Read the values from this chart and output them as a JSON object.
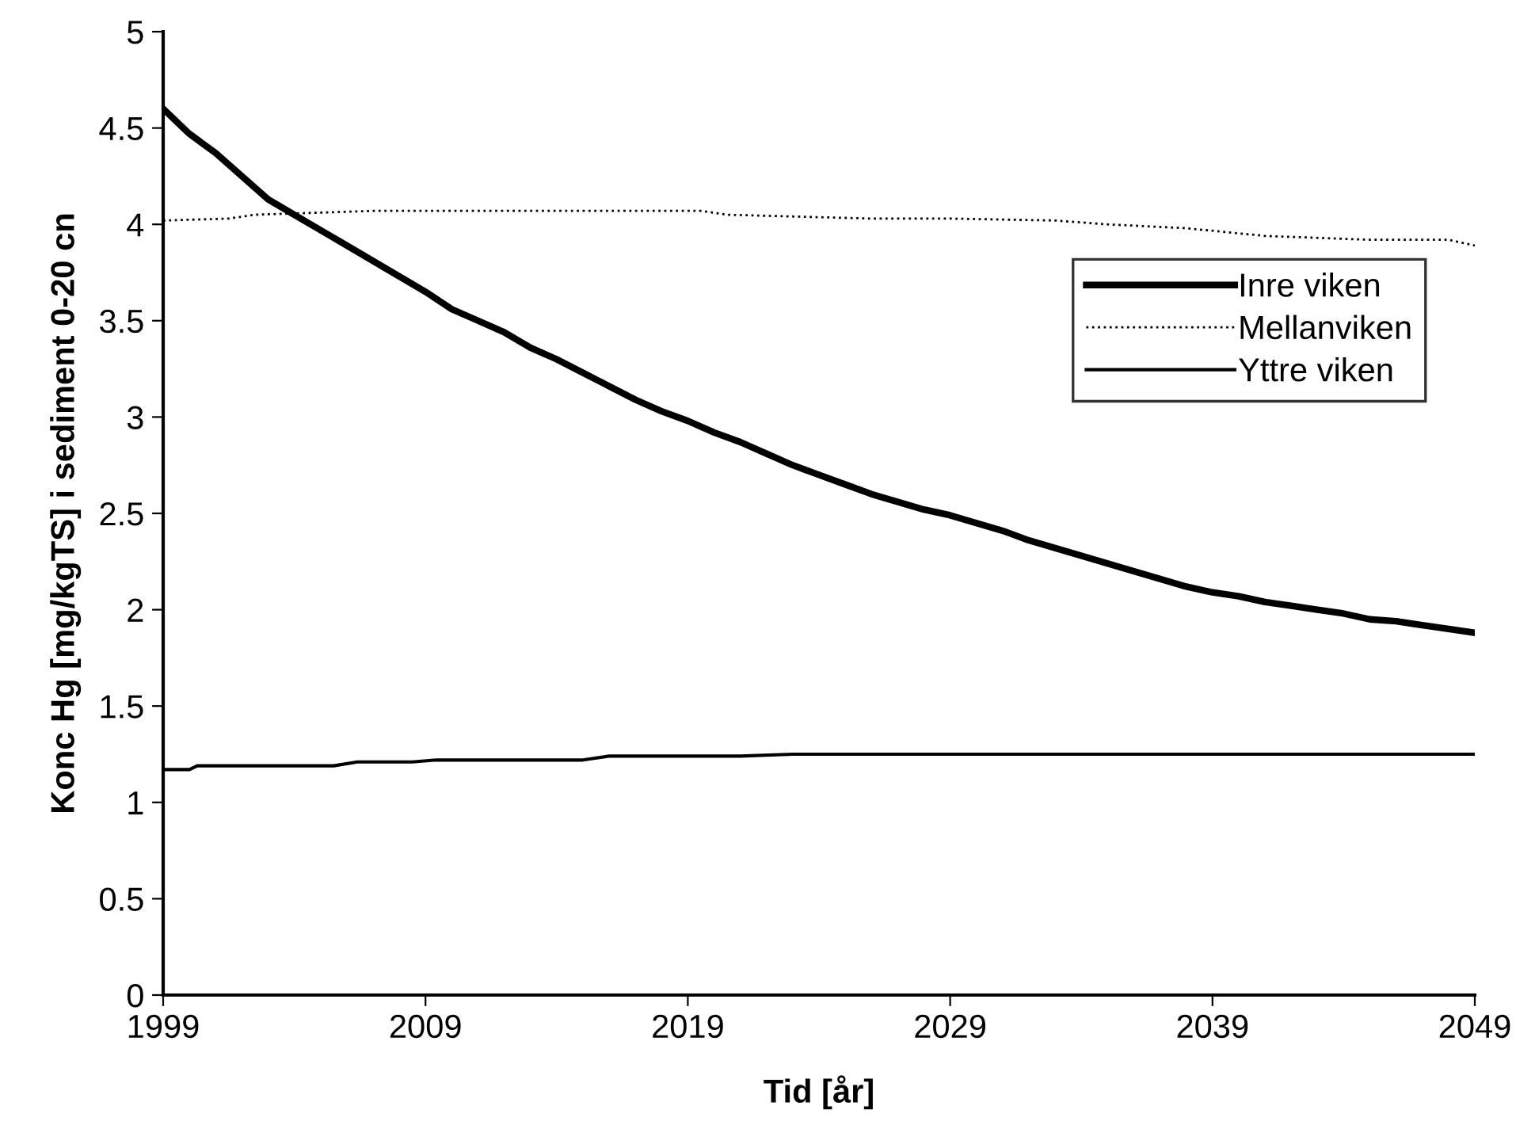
{
  "chart_data": {
    "type": "line",
    "xlabel": "Tid [år]",
    "ylabel": "Konc Hg [mg/kgTS] i sediment 0-20 cn",
    "xlim": [
      1999,
      2049
    ],
    "xticks": [
      1999,
      2009,
      2019,
      2029,
      2039,
      2049
    ],
    "ylim": [
      0,
      5
    ],
    "yticks": [
      0,
      0.5,
      1,
      1.5,
      2,
      2.5,
      3,
      3.5,
      4,
      4.5,
      5
    ],
    "grid": false,
    "legend": "right",
    "marker": "none",
    "series": [
      {
        "name": "Inre viken",
        "color": "#000000",
        "line_style": "solid",
        "x": [
          1999,
          2000,
          2001,
          2002,
          2003,
          2004,
          2005,
          2006,
          2007,
          2008,
          2009,
          2010,
          2011,
          2012,
          2013,
          2014,
          2015,
          2016,
          2017,
          2018,
          2019,
          2020,
          2021,
          2022,
          2023,
          2024,
          2025,
          2026,
          2027,
          2028,
          2029,
          2030,
          2031,
          2032,
          2033,
          2034,
          2035,
          2036,
          2037,
          2038,
          2039,
          2040,
          2041,
          2042,
          2043,
          2044,
          2045,
          2046,
          2047,
          2048,
          2049
        ],
        "values": [
          4.6,
          4.47,
          4.37,
          4.25,
          4.13,
          4.05,
          3.97,
          3.89,
          3.81,
          3.73,
          3.65,
          3.56,
          3.5,
          3.44,
          3.36,
          3.3,
          3.23,
          3.16,
          3.09,
          3.03,
          2.98,
          2.92,
          2.87,
          2.81,
          2.75,
          2.7,
          2.65,
          2.6,
          2.56,
          2.52,
          2.49,
          2.45,
          2.41,
          2.36,
          2.32,
          2.28,
          2.24,
          2.2,
          2.16,
          2.12,
          2.09,
          2.07,
          2.04,
          2.02,
          2.0,
          1.98,
          1.95,
          1.94,
          1.92,
          1.9,
          1.88
        ]
      },
      {
        "name": "Mellanviken",
        "color": "#000000",
        "line_style": "dotted",
        "x": [
          1999,
          2001.5,
          2002.5,
          2007,
          2019.5,
          2020.5,
          2026,
          2029,
          2033,
          2035,
          2038,
          2041,
          2045,
          2048,
          2049
        ],
        "values": [
          4.02,
          4.03,
          4.05,
          4.07,
          4.07,
          4.05,
          4.03,
          4.03,
          4.02,
          4.0,
          3.98,
          3.94,
          3.92,
          3.92,
          3.89
        ]
      },
      {
        "name": "Yttre viken",
        "color": "#000000",
        "line_style": "solid",
        "x": [
          1999,
          2000,
          2000.3,
          2005.5,
          2006.4,
          2008.5,
          2009.4,
          2015,
          2016,
          2021,
          2023,
          2049
        ],
        "values": [
          1.17,
          1.17,
          1.19,
          1.19,
          1.21,
          1.21,
          1.22,
          1.22,
          1.24,
          1.24,
          1.25,
          1.25
        ]
      }
    ]
  }
}
